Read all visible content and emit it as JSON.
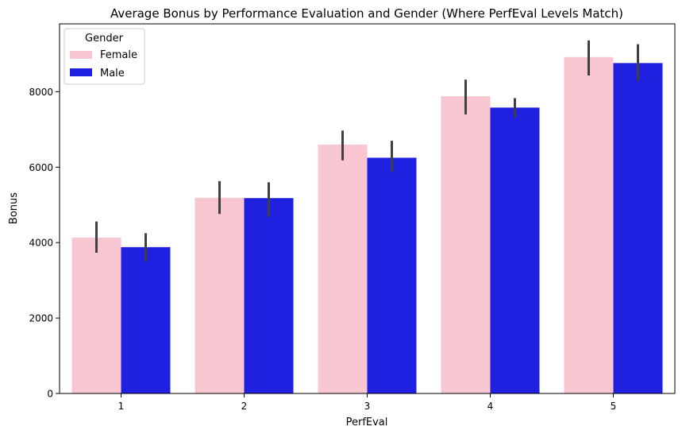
{
  "chart_data": {
    "type": "bar",
    "title": "Average Bonus by Performance Evaluation and Gender (Where PerfEval Levels Match)",
    "xlabel": "PerfEval",
    "ylabel": "Bonus",
    "categories": [
      "1",
      "2",
      "3",
      "4",
      "5"
    ],
    "ylim": [
      0,
      9800
    ],
    "yticks": [
      0,
      2000,
      4000,
      6000,
      8000
    ],
    "grid": false,
    "legend": {
      "title": "Gender",
      "placement": "top-left"
    },
    "series": [
      {
        "name": "Female",
        "color": "#f8c6d0",
        "values": [
          4130,
          5190,
          6600,
          7880,
          8920
        ],
        "error_low": [
          3730,
          4760,
          6180,
          7400,
          8430
        ],
        "error_high": [
          4560,
          5630,
          6970,
          8320,
          9360
        ]
      },
      {
        "name": "Male",
        "color": "#2020e0",
        "values": [
          3880,
          5180,
          6250,
          7580,
          8760
        ],
        "error_low": [
          3500,
          4680,
          5870,
          7310,
          8280
        ],
        "error_high": [
          4250,
          5600,
          6700,
          7830,
          9260
        ]
      }
    ],
    "error_bar_color": "#404040"
  }
}
